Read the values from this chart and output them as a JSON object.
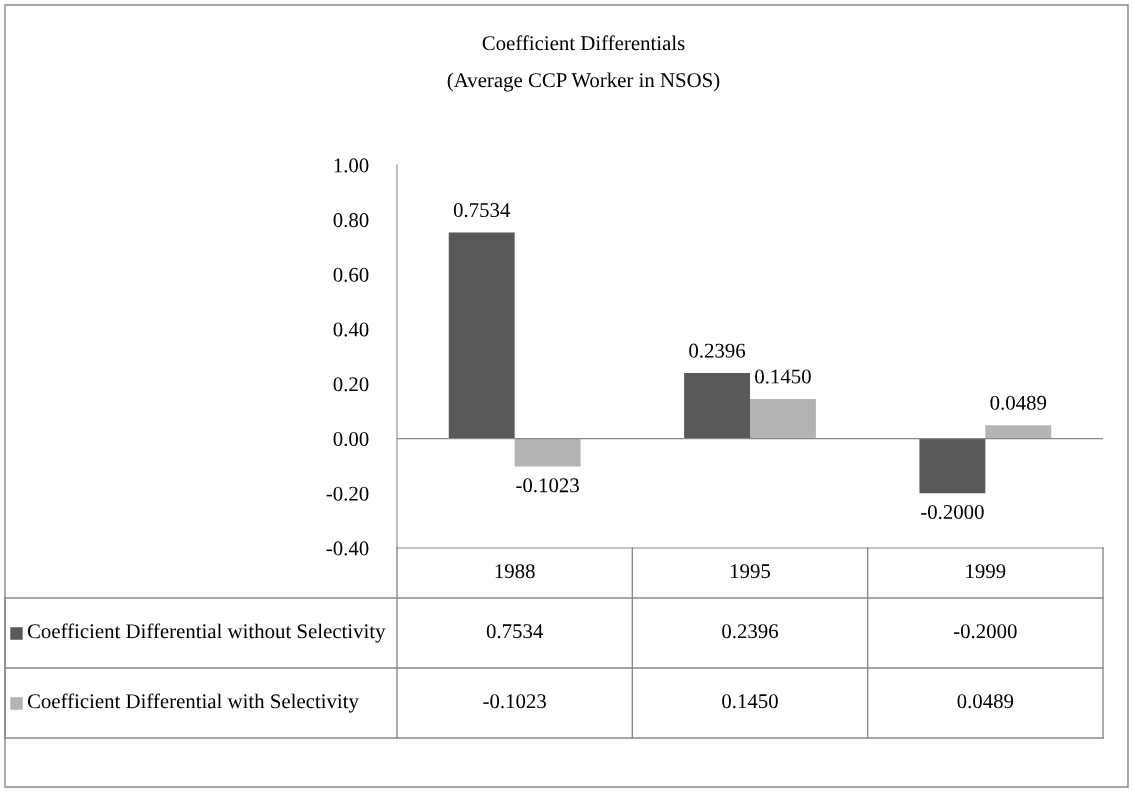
{
  "chart_data": {
    "type": "bar",
    "title": "Coefficient Differentials",
    "subtitle": "(Average CCP Worker in NSOS)",
    "categories": [
      "1988",
      "1995",
      "1999"
    ],
    "series": [
      {
        "name": "Coefficient Differential without Selectivity",
        "color": "#595959",
        "values": [
          0.7534,
          0.2396,
          -0.2
        ],
        "value_labels": [
          "0.7534",
          "0.2396",
          "-0.2000"
        ]
      },
      {
        "name": "Coefficient Differential with Selectivity",
        "color": "#b3b3b3",
        "values": [
          -0.1023,
          0.145,
          0.0489
        ],
        "value_labels": [
          "-0.1023",
          "0.1450",
          "0.0489"
        ]
      }
    ],
    "ylim": [
      -0.4,
      1.0
    ],
    "yticks": [
      {
        "value": -0.4,
        "label": "-0.40"
      },
      {
        "value": -0.2,
        "label": "-0.20"
      },
      {
        "value": 0,
        "label": "0.00"
      },
      {
        "value": 0.2,
        "label": "0.20"
      },
      {
        "value": 0.4,
        "label": "0.40"
      },
      {
        "value": 0.6,
        "label": "0.60"
      },
      {
        "value": 0.8,
        "label": "0.80"
      },
      {
        "value": 1.0,
        "label": "1.00"
      }
    ],
    "legend": "bottom"
  }
}
